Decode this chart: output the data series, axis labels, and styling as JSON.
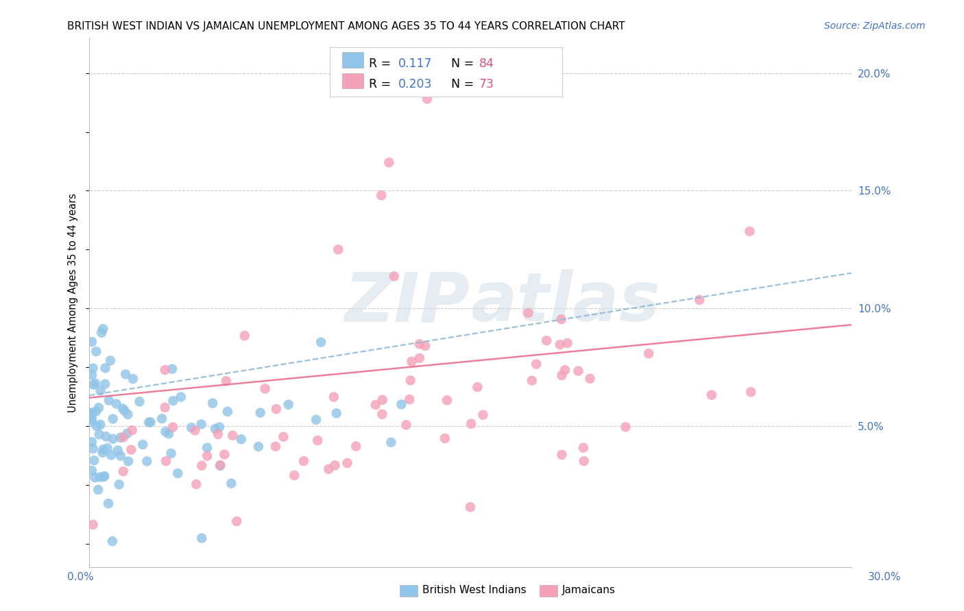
{
  "title": "BRITISH WEST INDIAN VS JAMAICAN UNEMPLOYMENT AMONG AGES 35 TO 44 YEARS CORRELATION CHART",
  "source": "Source: ZipAtlas.com",
  "ylabel": "Unemployment Among Ages 35 to 44 years",
  "ylabel_right_ticks": [
    "5.0%",
    "10.0%",
    "15.0%",
    "20.0%"
  ],
  "ylabel_right_vals": [
    0.05,
    0.1,
    0.15,
    0.2
  ],
  "legend_label1": "British West Indians",
  "legend_label2": "Jamaicans",
  "R1": "0.117",
  "N1": "84",
  "R2": "0.203",
  "N2": "73",
  "color_blue": "#90c4e8",
  "color_pink": "#f4a0b8",
  "color_blue_line": "#90b8d8",
  "color_pink_line": "#e87090",
  "color_axis_label": "#4472c4",
  "watermark_color": "#d0dde8",
  "xmin": 0.0,
  "xmax": 0.3,
  "ymin": -0.01,
  "ymax": 0.215,
  "grid_color": "#cccccc",
  "title_fontsize": 11,
  "source_fontsize": 10,
  "tick_fontsize": 11,
  "ylabel_fontsize": 10.5,
  "legend_fontsize": 12.5,
  "watermark_fontsize": 72
}
